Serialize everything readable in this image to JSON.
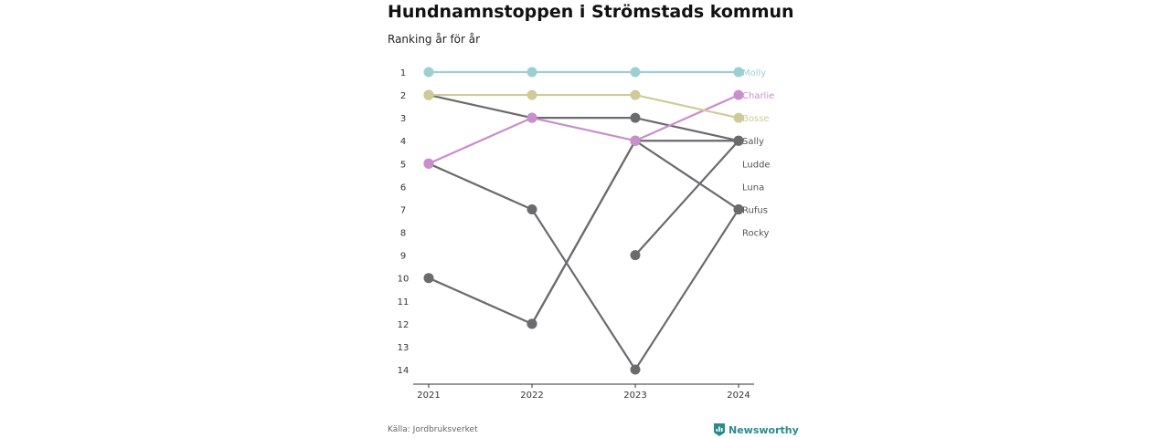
{
  "header": {
    "title": "Hundnamnstoppen i Strömstads kommun",
    "subtitle": "Ranking år för år"
  },
  "footer": {
    "source": "Källa: Jordbruksverket",
    "brand": "Newsworthy",
    "brand_icon": "bar-chart-logo-icon"
  },
  "colors": {
    "molly": "#9dcfd2",
    "charlie": "#c98fcc",
    "bosse": "#cfcb99",
    "other": "#6b6b6e",
    "axis": "#333333",
    "tick_text": "#333333",
    "label_other": "#555555"
  },
  "chart_data": {
    "type": "line",
    "x": [
      "2021",
      "2022",
      "2023",
      "2024"
    ],
    "y_ticks": [
      1,
      2,
      3,
      4,
      5,
      6,
      7,
      8,
      9,
      10,
      11,
      12,
      13,
      14
    ],
    "ylim": [
      1,
      14
    ],
    "y_inverted": true,
    "series": [
      {
        "name": "Molly",
        "values": [
          1,
          1,
          1,
          1
        ],
        "color": "#9dcfd2"
      },
      {
        "name": "Charlie",
        "values": [
          5,
          3,
          4,
          2
        ],
        "color": "#c98fcc"
      },
      {
        "name": "Bosse",
        "values": [
          2,
          2,
          2,
          3
        ],
        "color": "#cfcb99"
      },
      {
        "name": "Sally",
        "values": [
          2,
          3,
          3,
          4
        ],
        "color": "#6b6b6e"
      },
      {
        "name": "Ludde",
        "values": [
          null,
          12,
          4,
          4
        ],
        "color": "#6b6b6e"
      },
      {
        "name": "Luna",
        "values": [
          10,
          12,
          4,
          7
        ],
        "color": "#6b6b6e"
      },
      {
        "name": "Rufus",
        "values": [
          5,
          7,
          14,
          7
        ],
        "color": "#6b6b6e"
      },
      {
        "name": "Rocky",
        "values": [
          null,
          null,
          9,
          4
        ],
        "color": "#6b6b6e"
      }
    ],
    "end_labels": [
      "Molly",
      "Charlie",
      "Bosse",
      "Sally",
      "Ludde",
      "Luna",
      "Rufus",
      "Rocky"
    ],
    "grid": false,
    "legend": "right-end-labels"
  }
}
